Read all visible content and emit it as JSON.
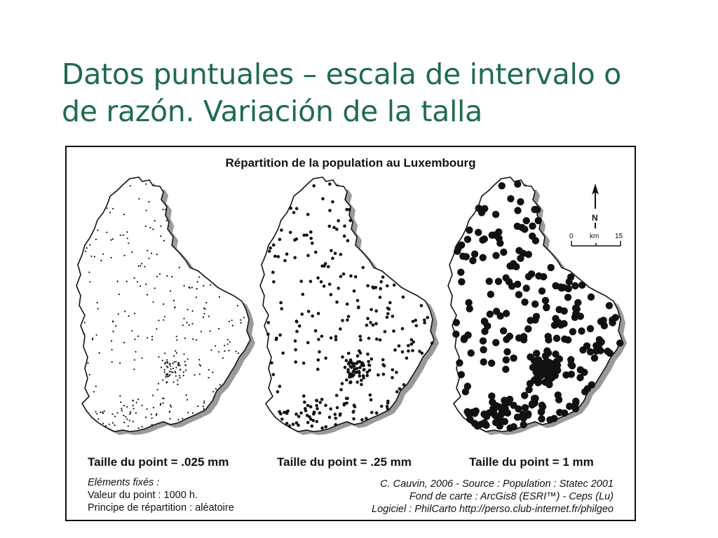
{
  "slide": {
    "title_line1": "Datos puntuales – escala de intervalo o",
    "title_line2": "de razón. Variación de la talla"
  },
  "figure": {
    "title": "Répartition de la population au Luxembourg",
    "panels": [
      {
        "caption": "Taille du point = .025 mm",
        "dot_radius_mm": 0.025
      },
      {
        "caption": "Taille du point = .25 mm",
        "dot_radius_mm": 0.25
      },
      {
        "caption": "Taille du point = 1 mm",
        "dot_radius_mm": 1
      }
    ],
    "fixed_elements": {
      "heading": "Eléments fixés :",
      "point_value": "Valeur du point  : 1000 h.",
      "distribution": "Principe de répartition : aléatoire"
    },
    "credits": {
      "line1": "C. Cauvin, 2006 - Source : Population : Statec 2001",
      "line2": "Fond de carte : ArcGis8 (ESRI™) - Ceps (Lu)",
      "line3": "Logiciel : PhilCarto http://perso.club-internet.fr/philgeo"
    },
    "north_label": "N",
    "scale": {
      "start": "0",
      "unit": "km",
      "end": "15"
    }
  },
  "colors": {
    "title": "#1f6b4e",
    "ink": "#111111"
  }
}
